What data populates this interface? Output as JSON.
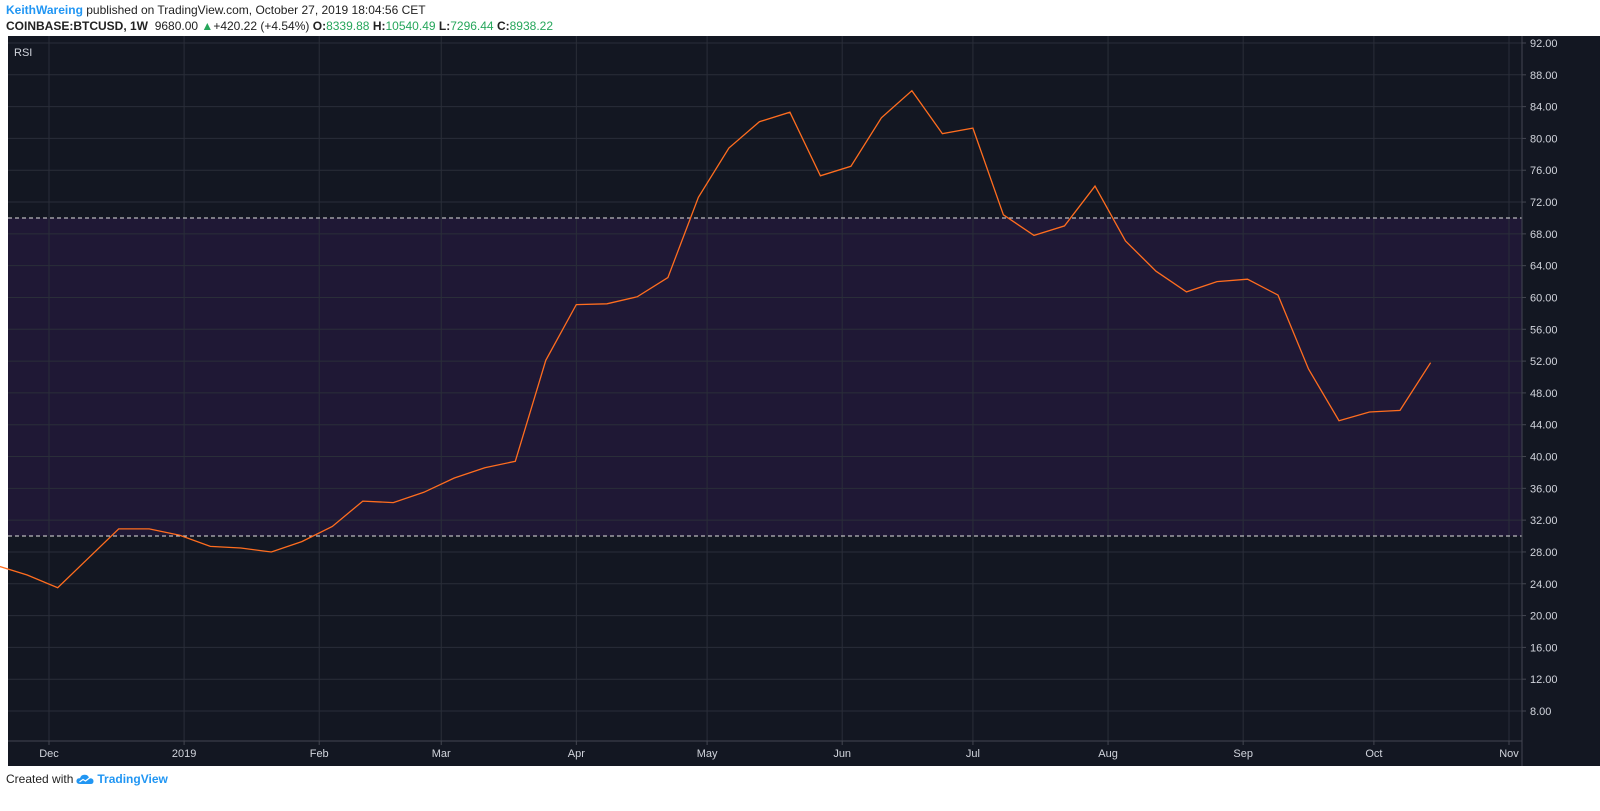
{
  "header": {
    "author": "KeithWareing",
    "published_text": "published on TradingView.com, October 27, 2019 18:04:56 CET",
    "symbol": "COINBASE:BTCUSD, 1W",
    "price": "9680.00",
    "change_arrow": "▲",
    "change": "+420.22 (+4.54%)",
    "open_label": "O:",
    "open": "8339.88",
    "high_label": "H:",
    "high": "10540.49",
    "low_label": "L:",
    "low": "7296.44",
    "close_label": "C:",
    "close": "8938.22"
  },
  "footer": {
    "created_with": "Created with",
    "brand": "TradingView"
  },
  "colors": {
    "background": "#131722",
    "band": "#1f1835",
    "line": "#ff6d1f",
    "grid": "#2a2e39",
    "dashed": "#e0e0e0",
    "axis_text": "#d1d4dc",
    "up": "#26a65b"
  },
  "chart_data": {
    "type": "line",
    "title": "RSI",
    "xlabel": "",
    "ylabel": "",
    "ylim": [
      5,
      92
    ],
    "y_ticks": [
      "8.00",
      "12.00",
      "16.00",
      "20.00",
      "24.00",
      "28.00",
      "32.00",
      "36.00",
      "40.00",
      "44.00",
      "48.00",
      "52.00",
      "56.00",
      "60.00",
      "64.00",
      "68.00",
      "72.00",
      "76.00",
      "80.00",
      "84.00",
      "88.00",
      "92.00"
    ],
    "y_tick_values": [
      8,
      12,
      16,
      20,
      24,
      28,
      32,
      36,
      40,
      44,
      48,
      52,
      56,
      60,
      64,
      68,
      72,
      76,
      80,
      84,
      88,
      92
    ],
    "x_ticks": [
      "Dec",
      "2019",
      "Feb",
      "Mar",
      "Apr",
      "May",
      "Jun",
      "Jul",
      "Aug",
      "Sep",
      "Oct",
      "Nov"
    ],
    "x_tick_dates": [
      "2018-12-01",
      "2019-01-01",
      "2019-02-01",
      "2019-03-01",
      "2019-04-01",
      "2019-05-01",
      "2019-06-01",
      "2019-07-01",
      "2019-08-01",
      "2019-09-01",
      "2019-10-01",
      "2019-11-01"
    ],
    "xlim": [
      "2018-11-21",
      "2019-11-05"
    ],
    "bands": {
      "upper": 70,
      "lower": 30
    },
    "grid": true,
    "series": [
      {
        "x": [
          "2018-11-19",
          "2018-11-26",
          "2018-12-03",
          "2018-12-10",
          "2018-12-17",
          "2018-12-24",
          "2018-12-31",
          "2019-01-07",
          "2019-01-14",
          "2019-01-21",
          "2019-01-28",
          "2019-02-04",
          "2019-02-11",
          "2019-02-18",
          "2019-02-25",
          "2019-03-04",
          "2019-03-11",
          "2019-03-18",
          "2019-03-25",
          "2019-04-01",
          "2019-04-08",
          "2019-04-15",
          "2019-04-22",
          "2019-04-29",
          "2019-05-06",
          "2019-05-13",
          "2019-05-20",
          "2019-05-27",
          "2019-06-03",
          "2019-06-10",
          "2019-06-17",
          "2019-06-24",
          "2019-07-01",
          "2019-07-08",
          "2019-07-15",
          "2019-07-22",
          "2019-07-29",
          "2019-08-05",
          "2019-08-12",
          "2019-08-19",
          "2019-08-26",
          "2019-09-02",
          "2019-09-09",
          "2019-09-16",
          "2019-09-23",
          "2019-09-30",
          "2019-10-07",
          "2019-10-14"
        ],
        "values": [
          26.3,
          25.1,
          23.5,
          27.2,
          30.9,
          30.9,
          30.1,
          28.7,
          28.5,
          28.0,
          29.3,
          31.2,
          34.4,
          34.2,
          35.5,
          37.3,
          38.6,
          39.4,
          52.1,
          59.1,
          59.2,
          60.1,
          62.5,
          72.6,
          78.8,
          82.1,
          83.3,
          75.3,
          76.5,
          82.6,
          86.0,
          80.6,
          81.3,
          70.4,
          67.8,
          69.0,
          74.0,
          67.1,
          63.3,
          60.7,
          62.0,
          62.3,
          60.3,
          51.0,
          44.5,
          45.6,
          45.8,
          51.8
        ]
      }
    ]
  }
}
